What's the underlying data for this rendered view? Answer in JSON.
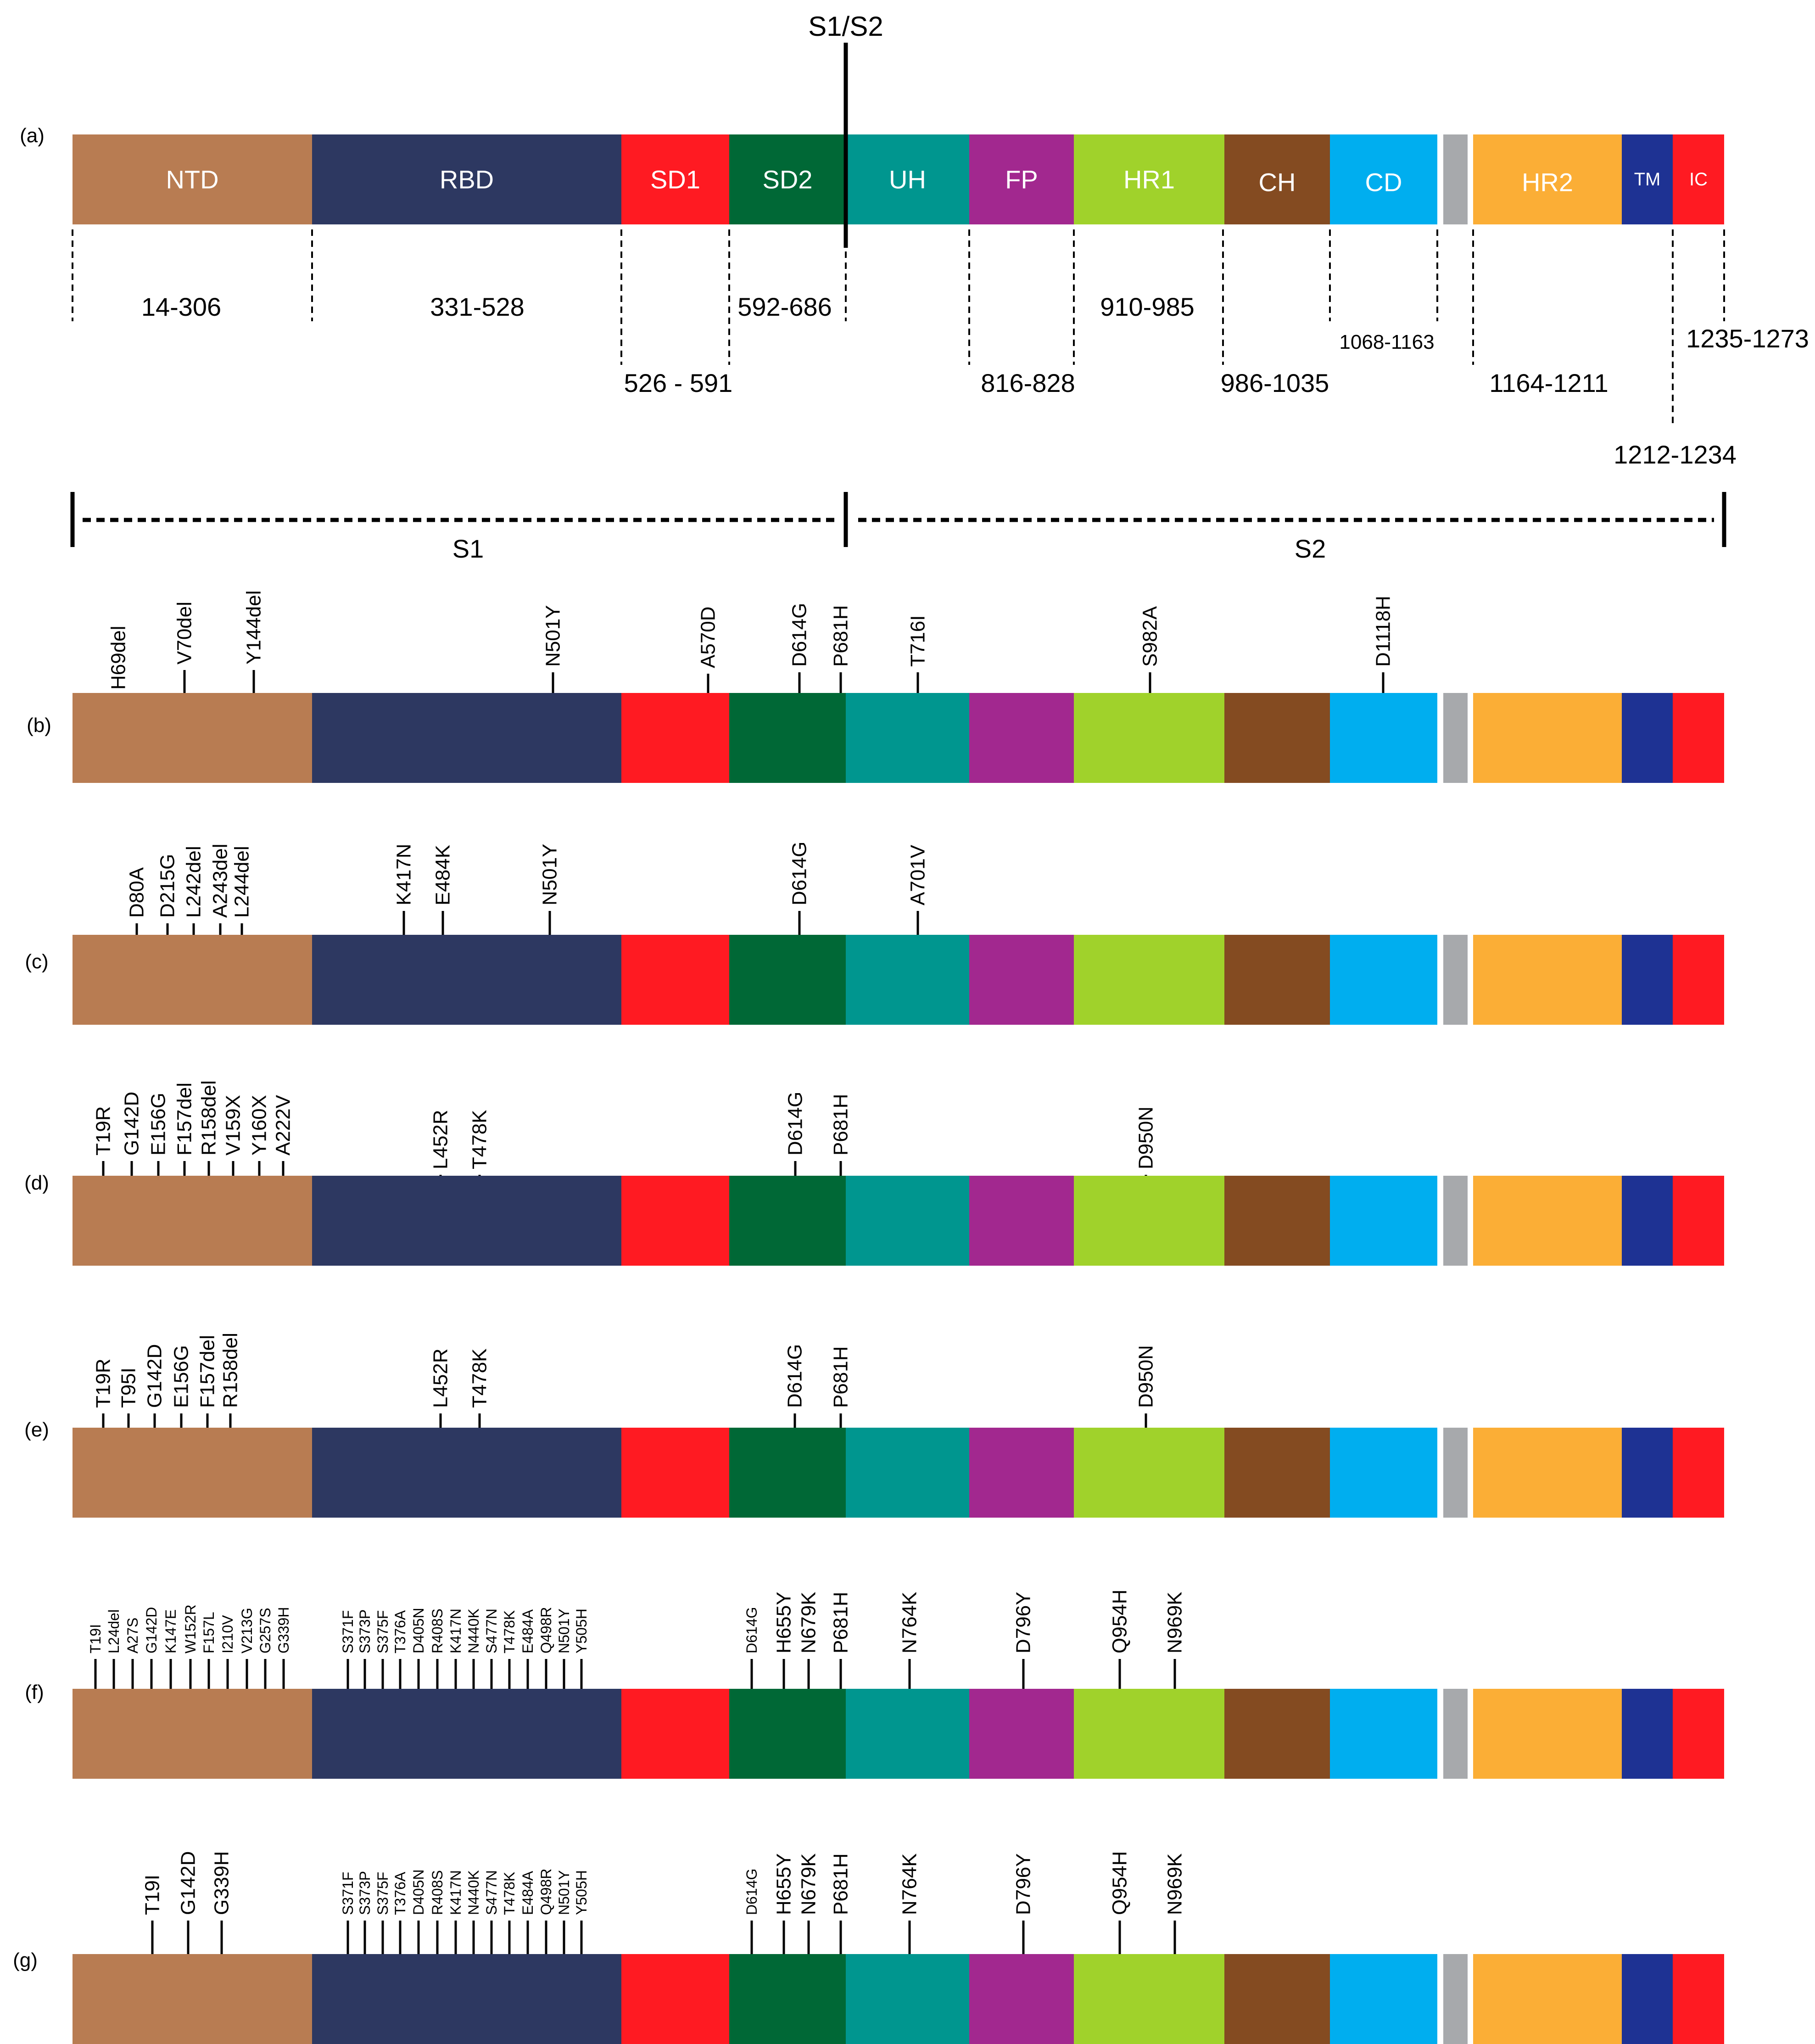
{
  "header": {
    "cleavage_label": "S1/S2"
  },
  "colors": {
    "NTD": "#B87C52",
    "RBD": "#2D3861",
    "SD1": "#FF1A22",
    "SD2": "#006836",
    "UH": "#00968F",
    "FP": "#A2288F",
    "HR1": "#A0D22B",
    "CH": "#844B21",
    "CD": "#00AEEF",
    "GAP": "#A7A9AC",
    "HR2": "#FBAE36",
    "TM": "#1E3293",
    "IC": "#FF1A22"
  },
  "domains": [
    {
      "key": "NTD",
      "label": "NTD"
    },
    {
      "key": "RBD",
      "label": "RBD"
    },
    {
      "key": "SD1",
      "label": "SD1"
    },
    {
      "key": "SD2",
      "label": "SD2"
    },
    {
      "key": "UH",
      "label": "UH"
    },
    {
      "key": "FP",
      "label": "FP"
    },
    {
      "key": "HR1",
      "label": "HR1"
    },
    {
      "key": "CH",
      "label": "CH"
    },
    {
      "key": "CD",
      "label": "CD"
    },
    {
      "key": "GAP",
      "label": ""
    },
    {
      "key": "HR2",
      "label": "HR2"
    },
    {
      "key": "TM",
      "label": "TM"
    },
    {
      "key": "IC",
      "label": "IC"
    }
  ],
  "ranges": [
    {
      "text": "14-306"
    },
    {
      "text": "331-528"
    },
    {
      "text": "592-686"
    },
    {
      "text": "910-985"
    },
    {
      "text": "1068-1163"
    },
    {
      "text": "1235-1273"
    },
    {
      "text": "526 - 591"
    },
    {
      "text": "816-828"
    },
    {
      "text": "986-1035"
    },
    {
      "text": "1164-1211"
    },
    {
      "text": "1212-1234"
    }
  ],
  "subunits": {
    "s1": "S1",
    "s2": "S2"
  },
  "panel_letters": [
    "(a)",
    "(b)",
    "(c)",
    "(d)",
    "(e)",
    "(f)",
    "(g)"
  ],
  "panels": [
    {
      "id": "b",
      "mutations": [
        "H69del",
        "V70del",
        "Y144del",
        "N501Y",
        "A570D",
        "D614G",
        "P681H",
        "T716I",
        "S982A",
        "D1118H"
      ]
    },
    {
      "id": "c",
      "mutations": [
        "D80A",
        "D215G",
        "L242del",
        "A243del",
        "L244del",
        "K417N",
        "E484K",
        "N501Y",
        "D614G",
        "A701V"
      ]
    },
    {
      "id": "d",
      "mutations": [
        "T19R",
        "G142D",
        "E156G",
        "F157del",
        "R158del",
        "V159X",
        "Y160X",
        "A222V",
        "L452R",
        "T478K",
        "D614G",
        "P681H",
        "D950N"
      ]
    },
    {
      "id": "e",
      "mutations": [
        "T19R",
        "T95I",
        "G142D",
        "E156G",
        "F157del",
        "R158del",
        "L452R",
        "T478K",
        "D614G",
        "P681H",
        "D950N"
      ]
    },
    {
      "id": "f",
      "mutations": [
        "T19I",
        "L24del",
        "A27S",
        "G142D",
        "K147E",
        "W152R",
        "F157L",
        "I210V",
        "V213G",
        "G257S",
        "G339H",
        "S371F",
        "S373P",
        "S375F",
        "T376A",
        "D405N",
        "R408S",
        "K417N",
        "N440K",
        "S477N",
        "T478K",
        "E484A",
        "Q498R",
        "N501Y",
        "Y505H",
        "D614G",
        "H655Y",
        "N679K",
        "P681H",
        "N764K",
        "D796Y",
        "Q954H",
        "N969K"
      ]
    },
    {
      "id": "g",
      "mutations": [
        "T19I",
        "G142D",
        "G339H",
        "S371F",
        "S373P",
        "S375F",
        "T376A",
        "D405N",
        "R408S",
        "K417N",
        "N440K",
        "S477N",
        "T478K",
        "E484A",
        "Q498R",
        "N501Y",
        "Y505H",
        "D614G",
        "H655Y",
        "N679K",
        "P681H",
        "N764K",
        "D796Y",
        "Q954H",
        "N969K"
      ]
    }
  ]
}
